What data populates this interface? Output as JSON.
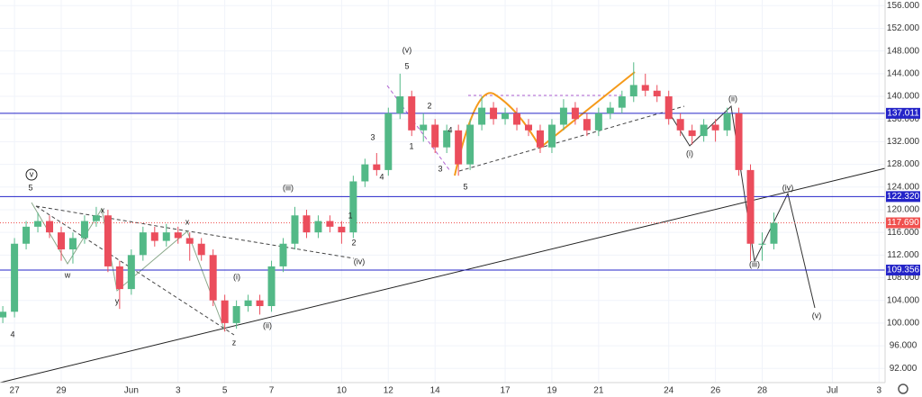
{
  "chart_data": {
    "type": "candlestick",
    "x": [
      -0.5,
      0,
      0.5,
      1,
      1.5,
      2,
      2.5,
      3,
      3.5,
      4,
      4.5,
      5,
      5.5,
      6,
      6.5,
      7,
      7.5,
      8,
      8.5,
      9,
      9.5,
      10,
      10.5,
      11,
      11.5,
      12,
      12.5,
      13,
      13.5,
      14,
      14.5,
      15,
      15.5,
      16,
      16.5,
      17,
      17.5,
      18,
      18.5,
      19,
      19.5,
      20,
      20.5,
      21,
      21.5,
      22,
      22.5,
      23,
      23.5,
      24,
      24.5,
      25,
      25.5,
      26,
      26.5,
      27,
      27.5,
      28,
      28.5,
      29,
      29.5,
      30,
      30.5,
      31,
      31.5,
      32,
      32.5
    ],
    "open": [
      101,
      102,
      114,
      117,
      118,
      116,
      113,
      115,
      118,
      119,
      110,
      106,
      112,
      116,
      114.5,
      116,
      115,
      114,
      112,
      104,
      100,
      103,
      104,
      103,
      110,
      114,
      119,
      116,
      118,
      117,
      116,
      125,
      128,
      127,
      137,
      140,
      134,
      135,
      131,
      134,
      128,
      135,
      138,
      136,
      137,
      135,
      134,
      131,
      135,
      138,
      136,
      134,
      137,
      138,
      140,
      142,
      141,
      140,
      136,
      134,
      133,
      135,
      134,
      137,
      127,
      114,
      114
    ],
    "high": [
      103,
      115,
      118,
      119.5,
      119,
      117,
      116,
      119,
      120.5,
      120,
      111,
      113,
      117,
      117,
      117.5,
      117,
      116,
      115,
      113,
      105,
      104,
      105,
      105,
      111,
      115,
      120.5,
      120,
      119,
      119,
      118,
      126,
      129,
      130,
      138,
      144,
      141,
      137,
      136,
      135,
      135,
      136,
      140,
      139,
      138,
      138,
      136,
      135,
      136,
      139.5,
      139,
      137,
      138,
      139,
      141,
      146,
      144,
      142,
      141,
      137,
      135,
      136,
      136,
      138,
      138,
      128,
      116,
      119.5
    ],
    "low": [
      100,
      101,
      113,
      116,
      115,
      111,
      110.5,
      114,
      117,
      109,
      102.5,
      105,
      111,
      113.5,
      113.5,
      114,
      111,
      111,
      103,
      98.5,
      99,
      102,
      101.5,
      102,
      109,
      113,
      115,
      115,
      116,
      114,
      115,
      124,
      126,
      126,
      136,
      133,
      132,
      130,
      130,
      126,
      127,
      134,
      135,
      135,
      134,
      133,
      130,
      130,
      134,
      135,
      133,
      133,
      136,
      137,
      139,
      140,
      139,
      135,
      133,
      131.5,
      132,
      132,
      133,
      126,
      111,
      111,
      113
    ],
    "close": [
      102,
      114,
      117,
      118,
      116,
      113,
      115,
      118,
      119,
      110,
      106,
      112,
      116,
      114.5,
      116,
      115,
      114,
      112,
      104,
      100,
      103,
      104,
      103,
      110,
      114,
      119,
      116,
      118,
      117,
      116,
      125,
      128,
      127,
      137,
      140,
      134,
      135,
      131,
      134,
      128,
      135,
      138,
      136,
      137,
      135,
      134,
      131,
      135,
      138,
      136,
      134,
      137,
      138,
      140,
      142,
      141,
      140,
      136,
      134,
      133,
      135,
      134,
      137,
      127,
      114,
      114,
      117.69
    ],
    "up_color": "#53b987",
    "down_color": "#eb4d5c",
    "xlim": [
      -0.62,
      37.26
    ],
    "xticks": [
      {
        "value": 0,
        "label": "27"
      },
      {
        "value": 2,
        "label": "29"
      },
      {
        "value": 5,
        "label": "Jun"
      },
      {
        "value": 7,
        "label": "3"
      },
      {
        "value": 9,
        "label": "5"
      },
      {
        "value": 11,
        "label": "7"
      },
      {
        "value": 14,
        "label": "10"
      },
      {
        "value": 16,
        "label": "12"
      },
      {
        "value": 18,
        "label": "14"
      },
      {
        "value": 21,
        "label": "17"
      },
      {
        "value": 23,
        "label": "19"
      },
      {
        "value": 25,
        "label": "21"
      },
      {
        "value": 28,
        "label": "24"
      },
      {
        "value": 30,
        "label": "26"
      },
      {
        "value": 32,
        "label": "28"
      },
      {
        "value": 35,
        "label": "Jul"
      },
      {
        "value": 37,
        "label": "3"
      }
    ],
    "ylim": [
      89.5,
      157
    ],
    "yticks": [
      {
        "value": 92,
        "label": "92.000"
      },
      {
        "value": 96,
        "label": "96.000"
      },
      {
        "value": 100,
        "label": "100.000"
      },
      {
        "value": 104,
        "label": "104.000"
      },
      {
        "value": 108,
        "label": "108.000"
      },
      {
        "value": 112,
        "label": "112.000"
      },
      {
        "value": 116,
        "label": "116.000"
      },
      {
        "value": 120,
        "label": "120.000"
      },
      {
        "value": 124,
        "label": "124.000"
      },
      {
        "value": 128,
        "label": "128.000"
      },
      {
        "value": 132,
        "label": "132.000"
      },
      {
        "value": 136,
        "label": "136.000"
      },
      {
        "value": 140,
        "label": "140.000"
      },
      {
        "value": 144,
        "label": "144.000"
      },
      {
        "value": 148,
        "label": "148.000"
      },
      {
        "value": 152,
        "label": "152.000"
      },
      {
        "value": 156,
        "label": "156.000"
      }
    ],
    "grid": true,
    "levels": [
      {
        "value": 137.011,
        "label": "137.011"
      },
      {
        "value": 122.32,
        "label": "122.320"
      },
      {
        "value": 109.356,
        "label": "109.356"
      }
    ],
    "level_color": "#2424c8",
    "last_price": {
      "value": 117.69,
      "label": "117.690"
    },
    "last_price_color": "#f0514f",
    "annotations": [
      "v",
      "5",
      "w",
      "x",
      "y",
      "x",
      "(i)",
      "z",
      "(ii)",
      "(iii)",
      "1",
      "2",
      "(iv)",
      "3",
      "4",
      "(v)",
      "5",
      "2",
      "1",
      "4",
      "3",
      "5",
      "(i)",
      "(ii)",
      "(iv)",
      "(iii)",
      "(v)",
      "4"
    ]
  }
}
